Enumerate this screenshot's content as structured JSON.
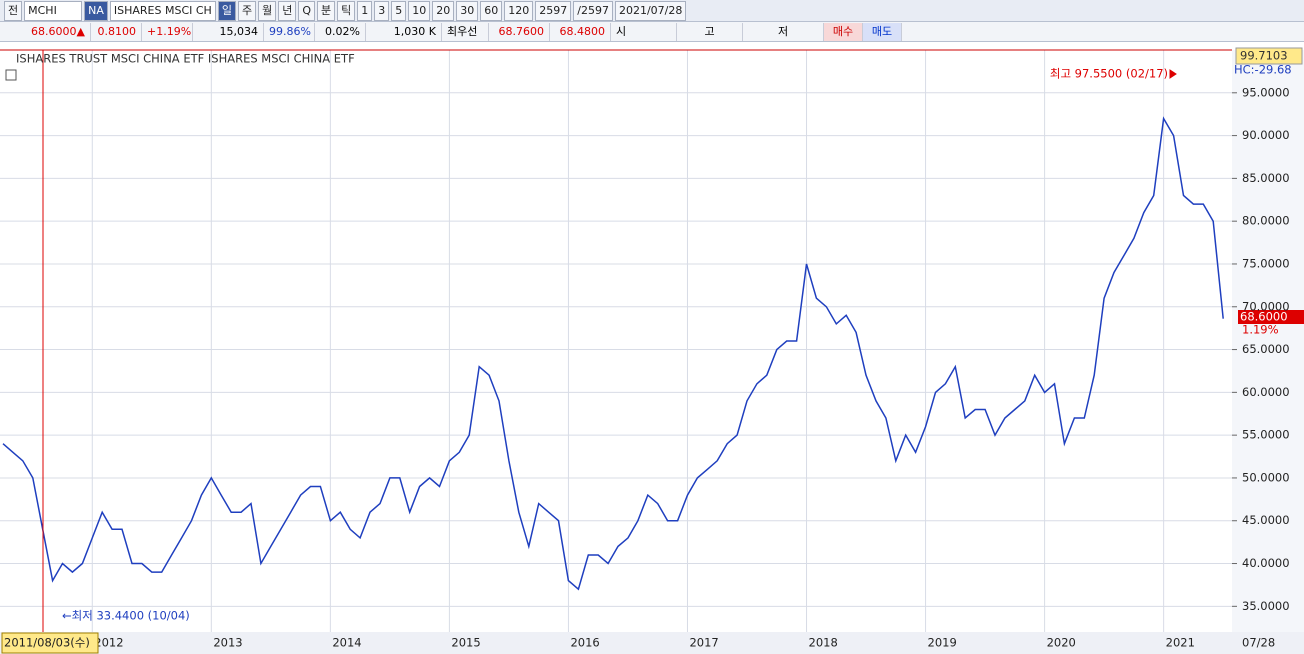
{
  "toolbar": [
    "전",
    "MCHI",
    "NA",
    "ISHARES MSCI CH",
    "일",
    "주",
    "월",
    "년",
    "Q",
    "분",
    "틱",
    "1",
    "3",
    "5",
    "10",
    "20",
    "30",
    "60",
    "120",
    "2597",
    "/2597",
    "2021/07/28"
  ],
  "info": {
    "price": "68.6000▲",
    "change": "0.8100",
    "change_pct": "+1.19%",
    "volume": "15,034",
    "vol_ratio": "99.86%",
    "turnover": "0.02%",
    "amount": "1,030 K",
    "best_label": "최우선",
    "ask": "68.7600",
    "bid": "68.4800",
    "open_label": "시",
    "high_label": "고",
    "low_label": "저",
    "buy": "매수",
    "sell": "매도"
  },
  "chart_data": {
    "type": "line",
    "legend": "ISHARES TRUST MSCI CHINA ETF  ISHARES MSCI CHINA ETF",
    "categories": [
      null,
      null,
      null,
      null,
      null,
      null,
      null,
      null,
      null,
      "2012",
      null,
      null,
      null,
      null,
      null,
      null,
      null,
      null,
      null,
      null,
      null,
      "2013",
      null,
      null,
      null,
      null,
      null,
      null,
      null,
      null,
      null,
      null,
      null,
      "2014",
      null,
      null,
      null,
      null,
      null,
      null,
      null,
      null,
      null,
      null,
      null,
      "2015",
      null,
      null,
      null,
      null,
      null,
      null,
      null,
      null,
      null,
      null,
      null,
      "2016",
      null,
      null,
      null,
      null,
      null,
      null,
      null,
      null,
      null,
      null,
      null,
      "2017",
      null,
      null,
      null,
      null,
      null,
      null,
      null,
      null,
      null,
      null,
      null,
      "2018",
      null,
      null,
      null,
      null,
      null,
      null,
      null,
      null,
      null,
      null,
      null,
      "2019",
      null,
      null,
      null,
      null,
      null,
      null,
      null,
      null,
      null,
      null,
      null,
      "2020",
      null,
      null,
      null,
      null,
      null,
      null,
      null,
      null,
      null,
      null,
      null,
      "2021",
      null,
      null,
      null,
      null,
      null,
      null
    ],
    "series": [
      {
        "name": "MCHI",
        "color": "#1f3fbf",
        "values": [
          54,
          53,
          52,
          50,
          44,
          38,
          40,
          39,
          40,
          43,
          46,
          44,
          44,
          40,
          40,
          39,
          39,
          41,
          43,
          45,
          48,
          50,
          48,
          46,
          46,
          47,
          40,
          42,
          44,
          46,
          48,
          49,
          49,
          45,
          46,
          44,
          43,
          46,
          47,
          50,
          50,
          46,
          49,
          50,
          49,
          52,
          53,
          55,
          63,
          62,
          59,
          52,
          46,
          42,
          47,
          46,
          45,
          38,
          37,
          41,
          41,
          40,
          42,
          43,
          45,
          48,
          47,
          45,
          45,
          48,
          50,
          51,
          52,
          54,
          55,
          59,
          61,
          62,
          65,
          66,
          66,
          75,
          71,
          70,
          68,
          69,
          67,
          62,
          59,
          57,
          52,
          55,
          53,
          56,
          60,
          61,
          63,
          57,
          58,
          58,
          55,
          57,
          58,
          59,
          62,
          60,
          61,
          54,
          57,
          57,
          62,
          71,
          74,
          76,
          78,
          81,
          83,
          92,
          90,
          83,
          82,
          82,
          80,
          68.6
        ]
      }
    ],
    "ylim": [
      32,
      100
    ],
    "yticks": [
      {
        "value": 35,
        "label": "35.0000"
      },
      {
        "value": 40,
        "label": "40.0000"
      },
      {
        "value": 45,
        "label": "45.0000"
      },
      {
        "value": 50,
        "label": "50.0000"
      },
      {
        "value": 55,
        "label": "55.0000"
      },
      {
        "value": 60,
        "label": "60.0000"
      },
      {
        "value": 65,
        "label": "65.0000"
      },
      {
        "value": 70,
        "label": "70.0000"
      },
      {
        "value": 75,
        "label": "75.0000"
      },
      {
        "value": 80,
        "label": "80.0000"
      },
      {
        "value": 85,
        "label": "85.0000"
      },
      {
        "value": 90,
        "label": "90.0000"
      },
      {
        "value": 95,
        "label": "95.0000"
      }
    ],
    "grid": true,
    "annotations": {
      "high": "최고 97.5500 (02/17)",
      "low": "←최저 33.4400 (10/04)",
      "top_price": "99.7103",
      "hc": "HC:-29.68",
      "last_price": "68.6000",
      "last_pct": "1.19%",
      "cursor_date": "2011/08/03(수)",
      "end_date": "07/28"
    }
  }
}
